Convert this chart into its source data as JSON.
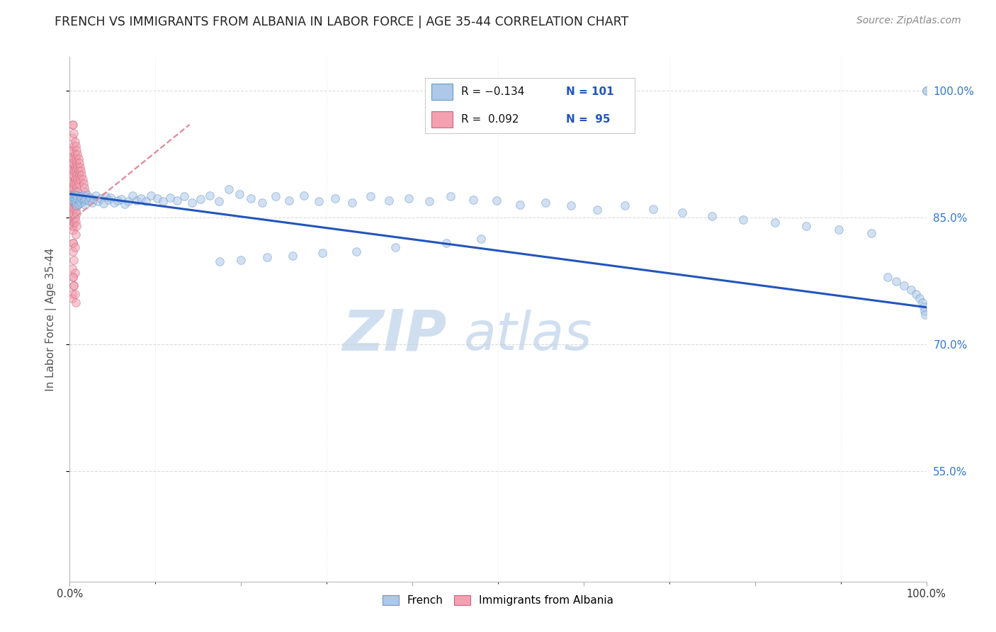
{
  "title": "FRENCH VS IMMIGRANTS FROM ALBANIA IN LABOR FORCE | AGE 35-44 CORRELATION CHART",
  "source": "Source: ZipAtlas.com",
  "ylabel": "In Labor Force | Age 35-44",
  "right_yticks": [
    1.0,
    0.85,
    0.7,
    0.55
  ],
  "right_yticklabels": [
    "100.0%",
    "85.0%",
    "70.0%",
    "55.0%"
  ],
  "legend_blue_r": "R = −0.134",
  "legend_blue_n": "N = 101",
  "legend_pink_r": "R =  0.092",
  "legend_pink_n": "N =  95",
  "blue_color": "#adc8e8",
  "blue_edge": "#6699cc",
  "pink_color": "#f4a0b0",
  "pink_edge": "#cc6680",
  "trend_blue_color": "#2255bb",
  "trend_pink_color": "#e08898",
  "watermark_color": "#d0dff0",
  "title_color": "#222222",
  "axis_label_color": "#555555",
  "right_tick_color": "#3377cc",
  "grid_color": "#cccccc",
  "blue_scatter_x": [
    0.003,
    0.004,
    0.005,
    0.006,
    0.006,
    0.007,
    0.008,
    0.008,
    0.009,
    0.01,
    0.011,
    0.012,
    0.013,
    0.014,
    0.015,
    0.016,
    0.017,
    0.018,
    0.019,
    0.02,
    0.022,
    0.024,
    0.026,
    0.028,
    0.03,
    0.033,
    0.036,
    0.039,
    0.042,
    0.045,
    0.048,
    0.052,
    0.056,
    0.06,
    0.064,
    0.068,
    0.073,
    0.078,
    0.083,
    0.089,
    0.095,
    0.102,
    0.109,
    0.117,
    0.125,
    0.134,
    0.143,
    0.153,
    0.163,
    0.174,
    0.186,
    0.198,
    0.211,
    0.225,
    0.24,
    0.256,
    0.273,
    0.291,
    0.31,
    0.33,
    0.351,
    0.373,
    0.396,
    0.42,
    0.445,
    0.471,
    0.498,
    0.526,
    0.555,
    0.585,
    0.616,
    0.648,
    0.681,
    0.715,
    0.75,
    0.786,
    0.823,
    0.86,
    0.898,
    0.936,
    0.955,
    0.965,
    0.974,
    0.982,
    0.988,
    0.992,
    0.995,
    0.997,
    0.998,
    0.999,
    1.0,
    1.0,
    0.44,
    0.48,
    0.38,
    0.335,
    0.295,
    0.26,
    0.23,
    0.2,
    0.175
  ],
  "blue_scatter_y": [
    0.875,
    0.87,
    0.873,
    0.877,
    0.871,
    0.868,
    0.876,
    0.864,
    0.872,
    0.866,
    0.87,
    0.875,
    0.868,
    0.873,
    0.876,
    0.869,
    0.871,
    0.865,
    0.872,
    0.877,
    0.87,
    0.874,
    0.868,
    0.872,
    0.876,
    0.869,
    0.873,
    0.867,
    0.875,
    0.871,
    0.874,
    0.868,
    0.87,
    0.872,
    0.866,
    0.869,
    0.876,
    0.87,
    0.873,
    0.869,
    0.876,
    0.873,
    0.869,
    0.874,
    0.87,
    0.875,
    0.868,
    0.872,
    0.876,
    0.869,
    0.884,
    0.878,
    0.873,
    0.868,
    0.875,
    0.87,
    0.876,
    0.869,
    0.873,
    0.868,
    0.875,
    0.87,
    0.873,
    0.869,
    0.875,
    0.871,
    0.87,
    0.865,
    0.868,
    0.864,
    0.859,
    0.864,
    0.86,
    0.856,
    0.852,
    0.848,
    0.844,
    0.84,
    0.836,
    0.832,
    0.78,
    0.775,
    0.77,
    0.765,
    0.76,
    0.755,
    0.75,
    0.745,
    0.74,
    0.735,
    1.0,
    1.0,
    0.82,
    0.825,
    0.815,
    0.81,
    0.808,
    0.805,
    0.803,
    0.8,
    0.798
  ],
  "pink_scatter_x": [
    0.001,
    0.001,
    0.001,
    0.001,
    0.001,
    0.002,
    0.002,
    0.002,
    0.002,
    0.002,
    0.002,
    0.002,
    0.003,
    0.003,
    0.003,
    0.003,
    0.003,
    0.003,
    0.003,
    0.003,
    0.003,
    0.004,
    0.004,
    0.004,
    0.004,
    0.004,
    0.004,
    0.004,
    0.004,
    0.004,
    0.005,
    0.005,
    0.005,
    0.005,
    0.005,
    0.005,
    0.005,
    0.005,
    0.006,
    0.006,
    0.006,
    0.006,
    0.006,
    0.006,
    0.006,
    0.007,
    0.007,
    0.007,
    0.007,
    0.007,
    0.007,
    0.007,
    0.007,
    0.008,
    0.008,
    0.008,
    0.008,
    0.008,
    0.008,
    0.008,
    0.009,
    0.009,
    0.009,
    0.009,
    0.009,
    0.01,
    0.01,
    0.01,
    0.01,
    0.011,
    0.011,
    0.012,
    0.012,
    0.013,
    0.014,
    0.015,
    0.016,
    0.017,
    0.018,
    0.019,
    0.003,
    0.003,
    0.003,
    0.004,
    0.004,
    0.004,
    0.005,
    0.005,
    0.006,
    0.006,
    0.004,
    0.005,
    0.003,
    0.006,
    0.007
  ],
  "pink_scatter_y": [
    0.88,
    0.895,
    0.91,
    0.865,
    0.85,
    0.92,
    0.905,
    0.89,
    0.875,
    0.86,
    0.845,
    0.93,
    0.915,
    0.9,
    0.885,
    0.87,
    0.855,
    0.84,
    0.96,
    0.945,
    0.93,
    0.915,
    0.9,
    0.885,
    0.87,
    0.855,
    0.84,
    0.96,
    0.835,
    0.82,
    0.95,
    0.935,
    0.92,
    0.905,
    0.89,
    0.875,
    0.86,
    0.845,
    0.94,
    0.925,
    0.91,
    0.895,
    0.88,
    0.865,
    0.85,
    0.935,
    0.92,
    0.905,
    0.89,
    0.875,
    0.86,
    0.845,
    0.83,
    0.93,
    0.915,
    0.9,
    0.885,
    0.87,
    0.855,
    0.84,
    0.925,
    0.91,
    0.895,
    0.88,
    0.865,
    0.92,
    0.905,
    0.89,
    0.875,
    0.915,
    0.9,
    0.91,
    0.895,
    0.905,
    0.9,
    0.895,
    0.89,
    0.885,
    0.88,
    0.875,
    0.87,
    0.79,
    0.76,
    0.81,
    0.78,
    0.82,
    0.8,
    0.77,
    0.815,
    0.785,
    0.78,
    0.77,
    0.755,
    0.76,
    0.75
  ],
  "blue_trend_x": [
    0.0,
    1.0
  ],
  "blue_trend_y": [
    0.878,
    0.744
  ],
  "pink_trend_x": [
    0.0,
    0.14
  ],
  "pink_trend_y": [
    0.845,
    0.96
  ],
  "xlim": [
    0.0,
    1.0
  ],
  "ylim": [
    0.42,
    1.04
  ],
  "scatter_size": 70,
  "scatter_alpha": 0.55,
  "watermark_text": "ZIP atlas",
  "watermark_fontsize": 58,
  "title_fontsize": 12.5,
  "source_fontsize": 10,
  "ylabel_fontsize": 11
}
